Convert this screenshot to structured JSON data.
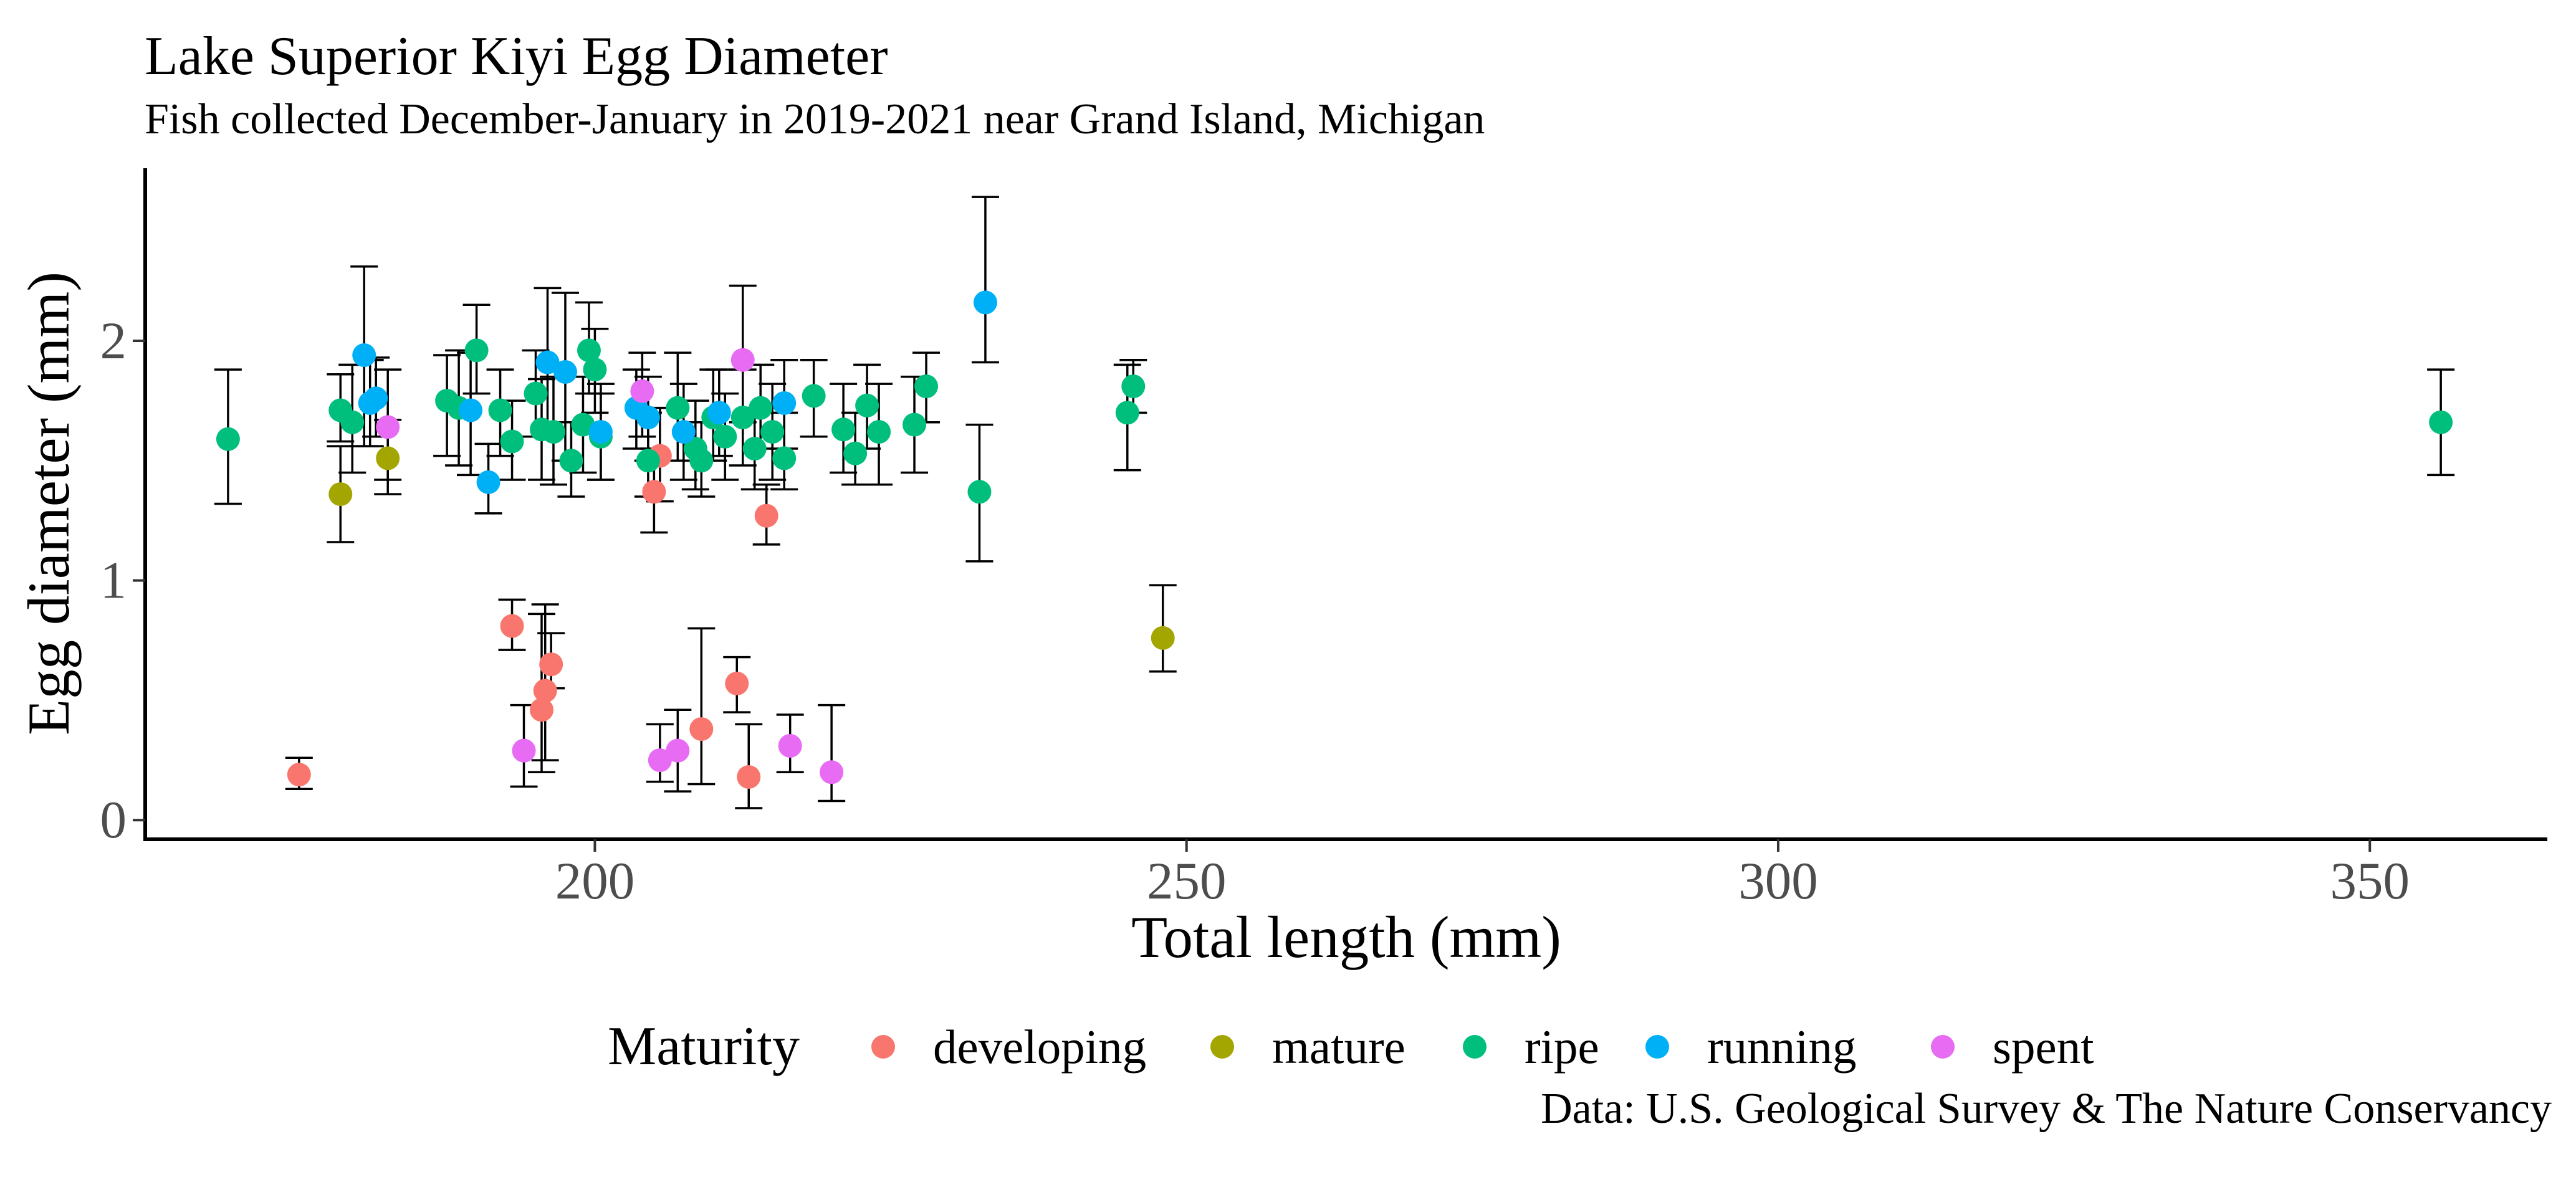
{
  "chart_data": {
    "type": "scatter",
    "title": "Lake Superior Kiyi Egg Diameter",
    "subtitle": "Fish collected December-January in 2019-2021 near Grand Island, Michigan",
    "caption": "Data: U.S. Geological Survey & The Nature Conservancy",
    "xlabel": "Total length (mm)",
    "ylabel": "Egg diameter (mm)",
    "xlim": [
      162,
      365
    ],
    "ylim": [
      -0.08,
      2.72
    ],
    "x_ticks": [
      200,
      250,
      300,
      350
    ],
    "y_ticks": [
      0,
      1,
      2
    ],
    "grid": false,
    "legend_title": "Maturity",
    "legend_position": "bottom",
    "colors": {
      "developing": "#F8766D",
      "mature": "#A3A500",
      "ripe": "#00BF7D",
      "running": "#00B0F6",
      "spent": "#E76BF3"
    },
    "series": [
      {
        "name": "developing",
        "points": [
          {
            "x": 175,
            "y": 0.19,
            "ymin": 0.13,
            "ymax": 0.26
          },
          {
            "x": 193,
            "y": 0.81,
            "ymin": 0.71,
            "ymax": 0.92
          },
          {
            "x": 195.5,
            "y": 0.46,
            "ymin": 0.2,
            "ymax": 0.86
          },
          {
            "x": 195.8,
            "y": 0.54,
            "ymin": 0.25,
            "ymax": 0.9
          },
          {
            "x": 196.3,
            "y": 0.65,
            "ymin": 0.55,
            "ymax": 0.78
          },
          {
            "x": 205,
            "y": 1.37,
            "ymin": 1.2,
            "ymax": 1.55
          },
          {
            "x": 205.5,
            "y": 1.52,
            "ymin": 1.33,
            "ymax": 1.72
          },
          {
            "x": 209,
            "y": 0.38,
            "ymin": 0.15,
            "ymax": 0.8
          },
          {
            "x": 212,
            "y": 0.57,
            "ymin": 0.45,
            "ymax": 0.68
          },
          {
            "x": 213,
            "y": 0.18,
            "ymin": 0.05,
            "ymax": 0.4
          },
          {
            "x": 214.5,
            "y": 1.27,
            "ymin": 1.15,
            "ymax": 1.4
          }
        ]
      },
      {
        "name": "mature",
        "points": [
          {
            "x": 178.5,
            "y": 1.36,
            "ymin": 1.16,
            "ymax": 1.56
          },
          {
            "x": 182.5,
            "y": 1.51,
            "ymin": 1.36,
            "ymax": 1.67
          },
          {
            "x": 248,
            "y": 0.76,
            "ymin": 0.62,
            "ymax": 0.98
          }
        ]
      },
      {
        "name": "ripe",
        "points": [
          {
            "x": 169,
            "y": 1.59,
            "ymin": 1.32,
            "ymax": 1.88
          },
          {
            "x": 178.5,
            "y": 1.71,
            "ymin": 1.58,
            "ymax": 1.86
          },
          {
            "x": 179.5,
            "y": 1.66,
            "ymin": 1.45,
            "ymax": 1.9
          },
          {
            "x": 187.5,
            "y": 1.75,
            "ymin": 1.52,
            "ymax": 1.94
          },
          {
            "x": 188.5,
            "y": 1.72,
            "ymin": 1.48,
            "ymax": 1.96
          },
          {
            "x": 190,
            "y": 1.96,
            "ymin": 1.78,
            "ymax": 2.15
          },
          {
            "x": 192,
            "y": 1.71,
            "ymin": 1.52,
            "ymax": 1.88
          },
          {
            "x": 193,
            "y": 1.58,
            "ymin": 1.42,
            "ymax": 1.75
          },
          {
            "x": 195,
            "y": 1.78,
            "ymin": 1.6,
            "ymax": 1.96
          },
          {
            "x": 195.5,
            "y": 1.63,
            "ymin": 1.42,
            "ymax": 1.84
          },
          {
            "x": 196.5,
            "y": 1.62,
            "ymin": 1.4,
            "ymax": 1.85
          },
          {
            "x": 198,
            "y": 1.5,
            "ymin": 1.35,
            "ymax": 1.66
          },
          {
            "x": 199,
            "y": 1.65,
            "ymin": 1.45,
            "ymax": 1.85
          },
          {
            "x": 199.5,
            "y": 1.96,
            "ymin": 1.78,
            "ymax": 2.16
          },
          {
            "x": 200,
            "y": 1.88,
            "ymin": 1.7,
            "ymax": 2.05
          },
          {
            "x": 200.5,
            "y": 1.6,
            "ymin": 1.42,
            "ymax": 1.78
          },
          {
            "x": 204.5,
            "y": 1.5,
            "ymin": 1.35,
            "ymax": 1.7
          },
          {
            "x": 207,
            "y": 1.72,
            "ymin": 1.5,
            "ymax": 1.95
          },
          {
            "x": 208.5,
            "y": 1.55,
            "ymin": 1.38,
            "ymax": 1.75
          },
          {
            "x": 209,
            "y": 1.5,
            "ymin": 1.35,
            "ymax": 1.66
          },
          {
            "x": 210,
            "y": 1.68,
            "ymin": 1.5,
            "ymax": 1.88
          },
          {
            "x": 211,
            "y": 1.6,
            "ymin": 1.42,
            "ymax": 1.78
          },
          {
            "x": 212.5,
            "y": 1.68,
            "ymin": 1.48,
            "ymax": 1.88
          },
          {
            "x": 213.5,
            "y": 1.55,
            "ymin": 1.38,
            "ymax": 1.72
          },
          {
            "x": 214,
            "y": 1.72,
            "ymin": 1.55,
            "ymax": 1.9
          },
          {
            "x": 215,
            "y": 1.62,
            "ymin": 1.42,
            "ymax": 1.82
          },
          {
            "x": 216,
            "y": 1.51,
            "ymin": 1.38,
            "ymax": 1.7
          },
          {
            "x": 218.5,
            "y": 1.77,
            "ymin": 1.6,
            "ymax": 1.92
          },
          {
            "x": 221,
            "y": 1.63,
            "ymin": 1.45,
            "ymax": 1.82
          },
          {
            "x": 222,
            "y": 1.53,
            "ymin": 1.4,
            "ymax": 1.7
          },
          {
            "x": 223,
            "y": 1.73,
            "ymin": 1.55,
            "ymax": 1.9
          },
          {
            "x": 224,
            "y": 1.62,
            "ymin": 1.4,
            "ymax": 1.82
          },
          {
            "x": 227,
            "y": 1.65,
            "ymin": 1.45,
            "ymax": 1.85
          },
          {
            "x": 228,
            "y": 1.81,
            "ymin": 1.66,
            "ymax": 1.95
          },
          {
            "x": 232.5,
            "y": 1.37,
            "ymin": 1.08,
            "ymax": 1.65
          },
          {
            "x": 245,
            "y": 1.7,
            "ymin": 1.46,
            "ymax": 1.9
          },
          {
            "x": 245.5,
            "y": 1.81,
            "ymin": 1.7,
            "ymax": 1.92
          },
          {
            "x": 356,
            "y": 1.66,
            "ymin": 1.44,
            "ymax": 1.88
          }
        ]
      },
      {
        "name": "running",
        "points": [
          {
            "x": 180.5,
            "y": 1.94,
            "ymin": 1.56,
            "ymax": 2.31
          },
          {
            "x": 181,
            "y": 1.74,
            "ymin": 1.56,
            "ymax": 1.92
          },
          {
            "x": 181.5,
            "y": 1.76,
            "ymin": 1.6,
            "ymax": 1.93
          },
          {
            "x": 189.5,
            "y": 1.71,
            "ymin": 1.44,
            "ymax": 1.95
          },
          {
            "x": 191,
            "y": 1.41,
            "ymin": 1.28,
            "ymax": 1.57
          },
          {
            "x": 196,
            "y": 1.91,
            "ymin": 1.6,
            "ymax": 2.22
          },
          {
            "x": 197.5,
            "y": 1.87,
            "ymin": 1.5,
            "ymax": 2.2
          },
          {
            "x": 200.5,
            "y": 1.62,
            "ymin": 1.42,
            "ymax": 1.82
          },
          {
            "x": 203.5,
            "y": 1.72,
            "ymin": 1.55,
            "ymax": 1.88
          },
          {
            "x": 204.5,
            "y": 1.68,
            "ymin": 1.5,
            "ymax": 1.85
          },
          {
            "x": 207.5,
            "y": 1.62,
            "ymin": 1.42,
            "ymax": 1.82
          },
          {
            "x": 210.5,
            "y": 1.7,
            "ymin": 1.52,
            "ymax": 1.88
          },
          {
            "x": 216,
            "y": 1.74,
            "ymin": 1.55,
            "ymax": 1.92
          },
          {
            "x": 233,
            "y": 2.16,
            "ymin": 1.91,
            "ymax": 2.6
          }
        ]
      },
      {
        "name": "spent",
        "points": [
          {
            "x": 182.5,
            "y": 1.64,
            "ymin": 1.42,
            "ymax": 1.88
          },
          {
            "x": 194,
            "y": 0.29,
            "ymin": 0.14,
            "ymax": 0.48
          },
          {
            "x": 204,
            "y": 1.79,
            "ymin": 1.6,
            "ymax": 1.95
          },
          {
            "x": 205.5,
            "y": 0.25,
            "ymin": 0.16,
            "ymax": 0.4
          },
          {
            "x": 207,
            "y": 0.29,
            "ymin": 0.12,
            "ymax": 0.46
          },
          {
            "x": 212.5,
            "y": 1.92,
            "ymin": 1.66,
            "ymax": 2.23
          },
          {
            "x": 216.5,
            "y": 0.31,
            "ymin": 0.2,
            "ymax": 0.44
          },
          {
            "x": 220,
            "y": 0.2,
            "ymin": 0.08,
            "ymax": 0.48
          }
        ]
      }
    ]
  }
}
